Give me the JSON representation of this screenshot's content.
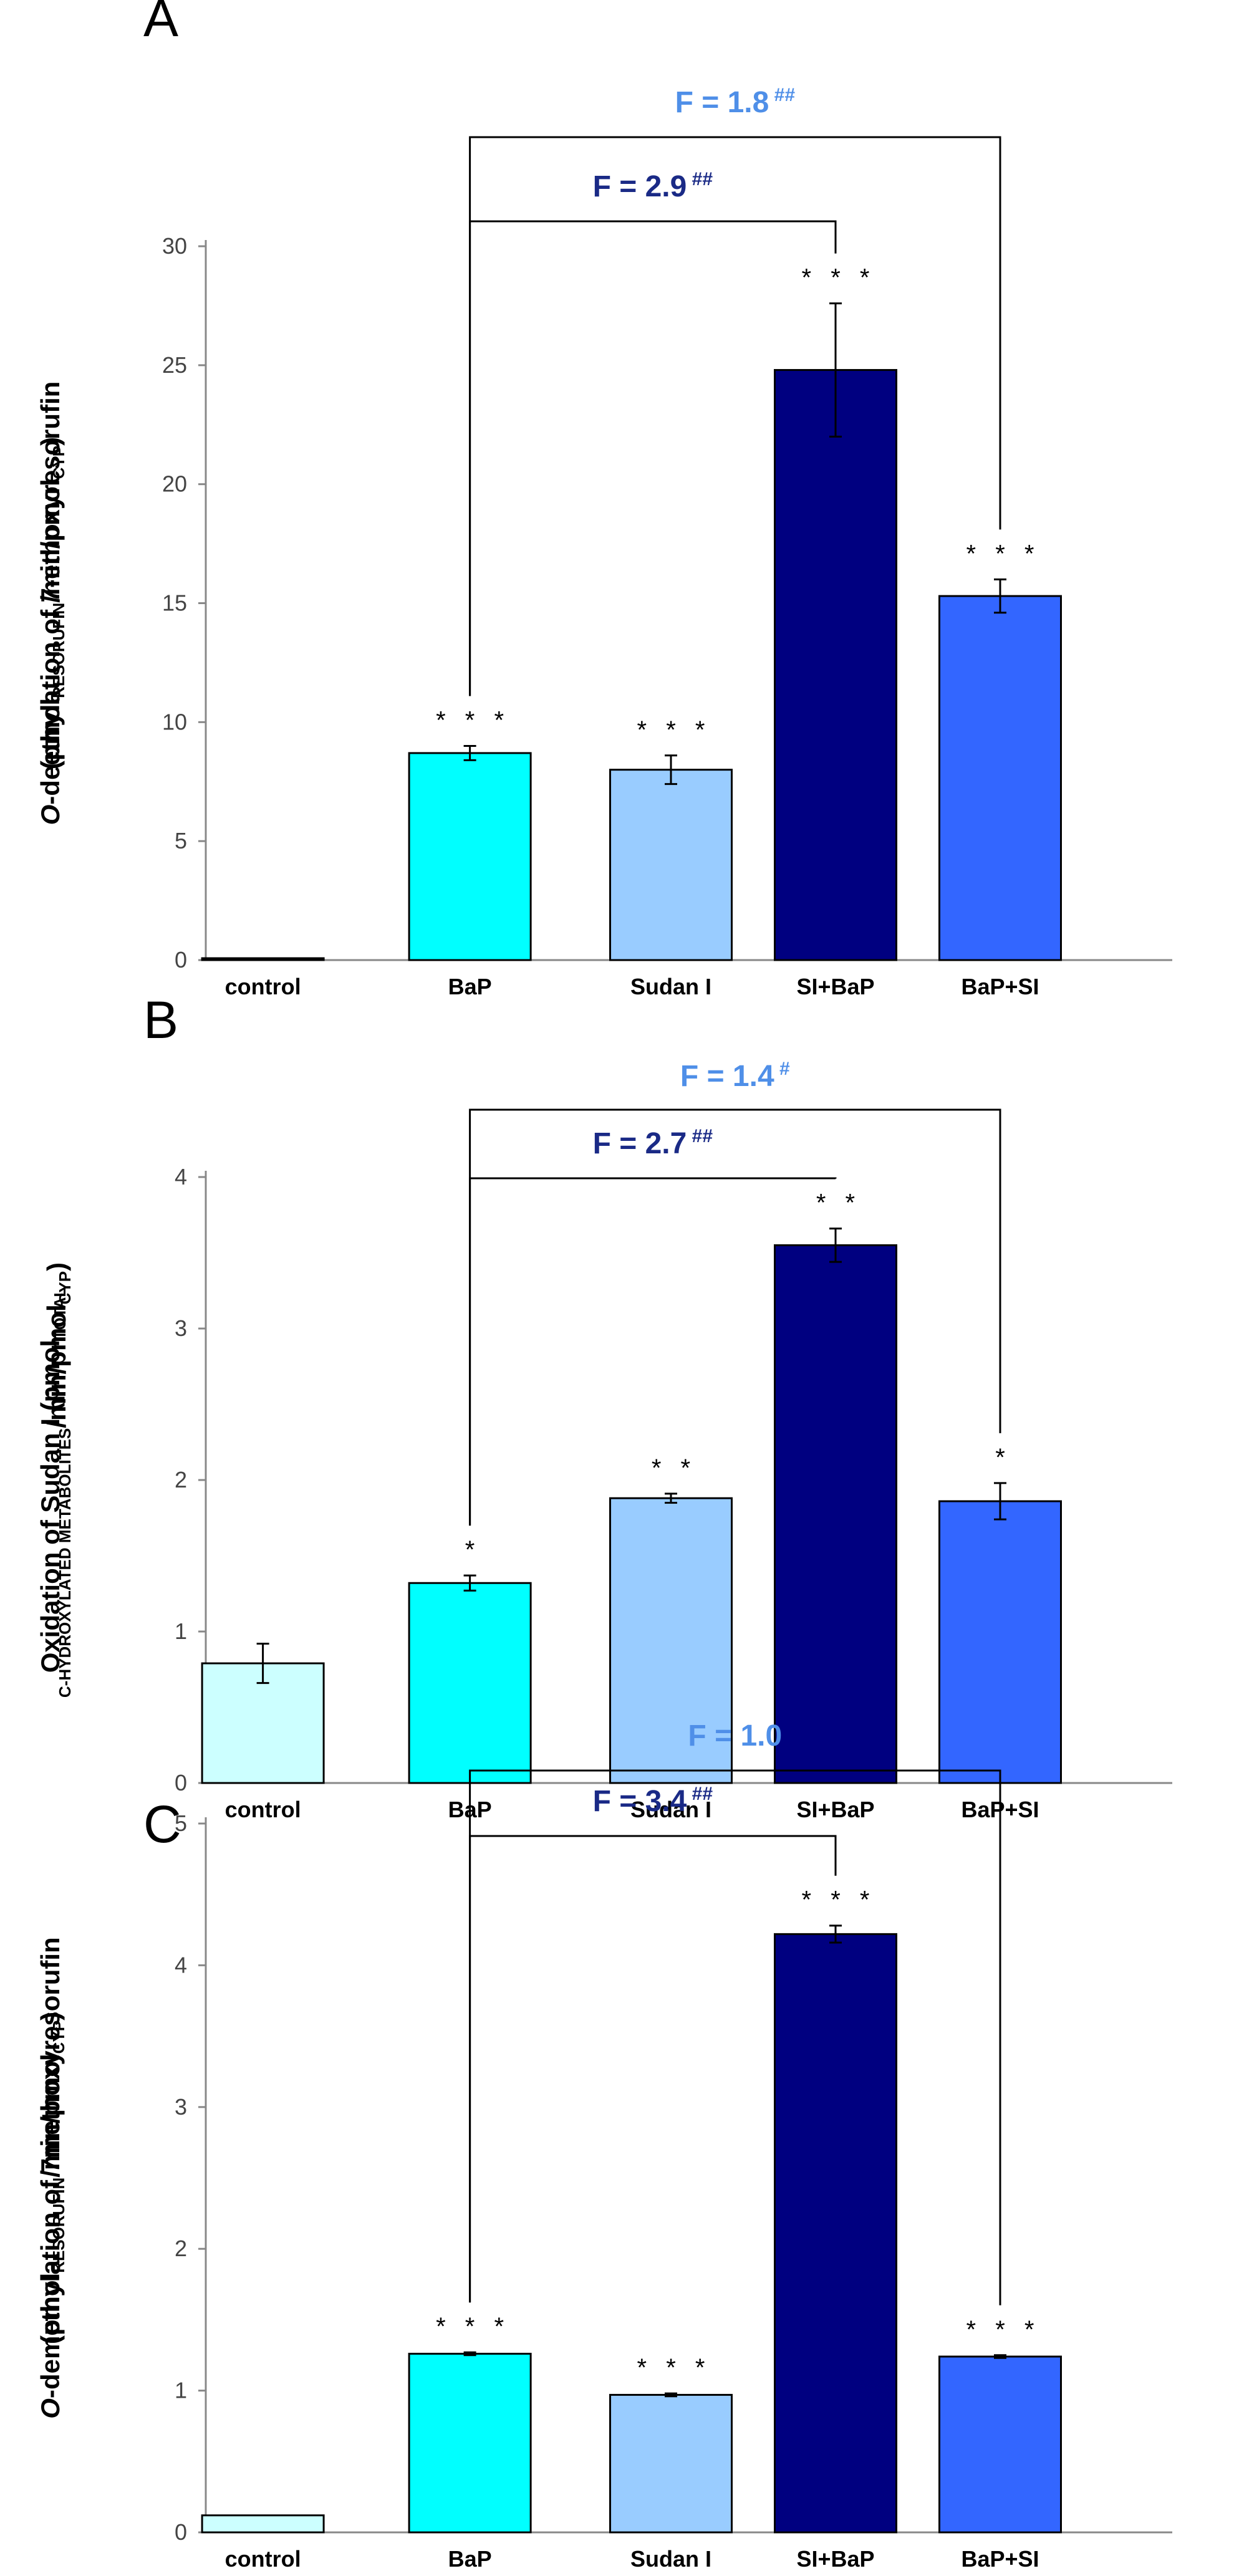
{
  "charts": [
    {
      "letter": "A",
      "ylabel_prefix": "O",
      "ylabel_line1": "-deethylation of 7-ethoxyresorufin",
      "ylabel_line2_parts": [
        "(pmol",
        "RESORUFIN",
        "/min/pmol",
        "CYP",
        ")"
      ],
      "comparisons": [
        {
          "text": "F = 1.8",
          "hash": "##",
          "color": "#4f8fe8",
          "from": 1,
          "to": 4
        },
        {
          "text": "F = 2.9",
          "hash": "##",
          "color": "#1a2a86",
          "from": 1,
          "to": 3
        }
      ]
    },
    {
      "letter": "B",
      "ylabel_line1": "Oxidation of Sudan I (pmol",
      "ylabel_line1_sub": "TOTAL",
      "ylabel_line2_parts": [
        "C-HYDROXYLATED METABOLITES",
        "/min/pmol",
        "CYP",
        ")"
      ],
      "comparisons": [
        {
          "text": "F = 1.4",
          "hash": "#",
          "color": "#4f8fe8",
          "from": 1,
          "to": 4
        },
        {
          "text": "F = 2.7",
          "hash": "##",
          "color": "#1a2a86",
          "from": 1,
          "to": 3
        }
      ]
    },
    {
      "letter": "C",
      "ylabel_prefix": "O",
      "ylabel_line1": "-demethylation of 7methoxyresorufin",
      "ylabel_line2_parts": [
        "(pmol",
        "RESORUFIN",
        "/min/pmol",
        "CYP",
        ")"
      ],
      "comparisons": [
        {
          "text": "F = 1.0",
          "hash": "",
          "color": "#4f8fe8",
          "from": 1,
          "to": 4
        },
        {
          "text": "F = 3.4",
          "hash": "##",
          "color": "#1a2a86",
          "from": 1,
          "to": 3
        }
      ]
    }
  ],
  "chart_data": [
    {
      "type": "bar",
      "title": "A",
      "categories": [
        "control",
        "BaP",
        "Sudan I",
        "SI+BaP",
        "BaP+SI"
      ],
      "values": [
        0.05,
        8.7,
        8.0,
        24.8,
        15.3
      ],
      "errors": [
        0.0,
        0.3,
        0.6,
        2.8,
        0.7
      ],
      "significance": [
        "",
        "* * *",
        "* * *",
        "* * *",
        "* * *"
      ],
      "colors": [
        "#ccffff",
        "#00ffff",
        "#99ccff",
        "#000080",
        "#3366ff"
      ],
      "ylabel": "O-deethylation of 7-ethoxyresorufin (pmolRESORUFIN/min/pmolCYP)",
      "xlabel": "",
      "ylim": [
        0,
        30
      ],
      "yticks": [
        0,
        5,
        10,
        15,
        20,
        25,
        30
      ]
    },
    {
      "type": "bar",
      "title": "B",
      "categories": [
        "control",
        "BaP",
        "Sudan I",
        "SI+BaP",
        "BaP+SI"
      ],
      "values": [
        0.79,
        1.32,
        1.88,
        3.55,
        1.86
      ],
      "errors": [
        0.13,
        0.05,
        0.03,
        0.11,
        0.12
      ],
      "significance": [
        "",
        "*",
        "* *",
        "* *",
        "*"
      ],
      "colors": [
        "#ccffff",
        "#00ffff",
        "#99ccff",
        "#000080",
        "#3366ff"
      ],
      "ylabel": "Oxidation of Sudan I (pmolTOTAL C-HYDROXYLATED METABOLITES/min/pmolCYP)",
      "xlabel": "",
      "ylim": [
        0,
        4
      ],
      "yticks": [
        0,
        1,
        2,
        3,
        4
      ]
    },
    {
      "type": "bar",
      "title": "C",
      "categories": [
        "control",
        "BaP",
        "Sudan I",
        "SI+BaP",
        "BaP+SI"
      ],
      "values": [
        0.12,
        1.26,
        0.97,
        4.22,
        1.24
      ],
      "errors": [
        0.0,
        0.01,
        0.01,
        0.06,
        0.01
      ],
      "significance": [
        "",
        "* * *",
        "* * *",
        "* * *",
        "* * *"
      ],
      "colors": [
        "#ccffff",
        "#00ffff",
        "#99ccff",
        "#000080",
        "#3366ff"
      ],
      "ylabel": "O-demethylation of 7methoxyresorufin (pmolRESORUFIN/min/pmolCYP)",
      "xlabel": "",
      "ylim": [
        0,
        5
      ],
      "yticks": [
        0,
        1,
        2,
        3,
        4,
        5
      ]
    }
  ]
}
